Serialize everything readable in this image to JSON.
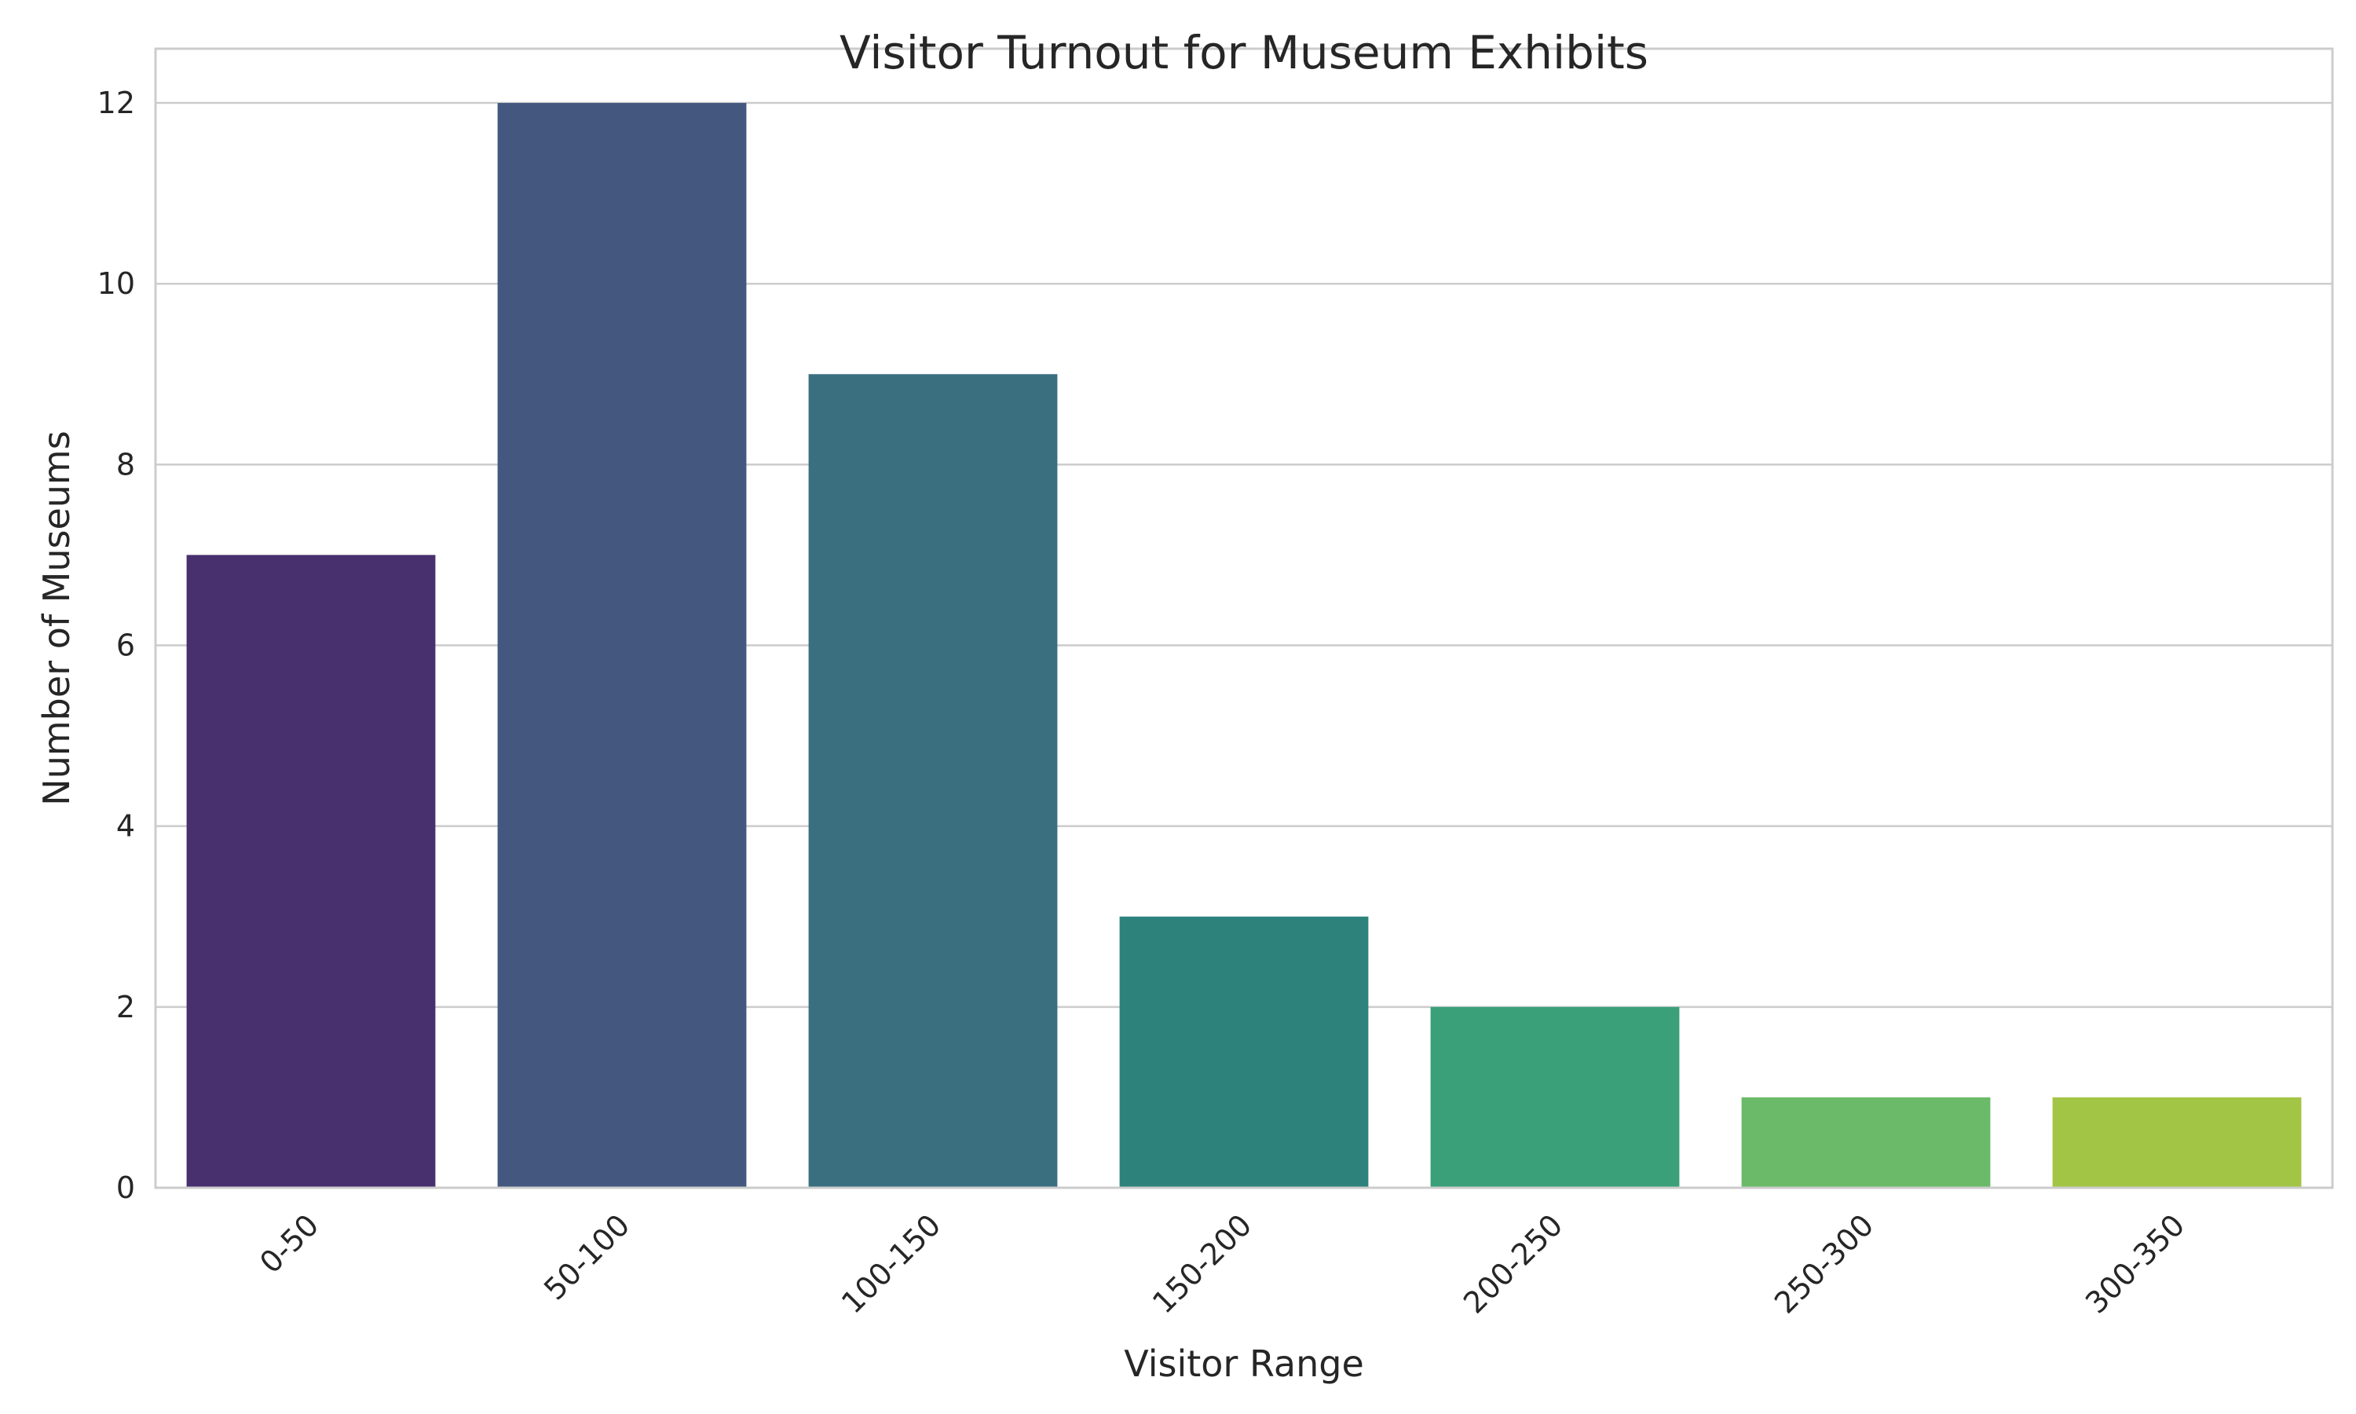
{
  "chart_data": {
    "type": "bar",
    "title": "Visitor Turnout for Museum Exhibits",
    "xlabel": "Visitor Range",
    "ylabel": "Number of Museums",
    "categories": [
      "0-50",
      "50-100",
      "100-150",
      "150-200",
      "200-250",
      "250-300",
      "300-350"
    ],
    "values": [
      7,
      12,
      9,
      3,
      2,
      1,
      1
    ],
    "colors": [
      "#482f6e",
      "#44577e",
      "#3a6f80",
      "#2d837c",
      "#3aa07a",
      "#6aba69",
      "#a2c545"
    ],
    "ylim": [
      0,
      12.6
    ],
    "yticks": [
      0,
      2,
      4,
      6,
      8,
      10,
      12
    ],
    "grid": true,
    "legend": "none"
  }
}
